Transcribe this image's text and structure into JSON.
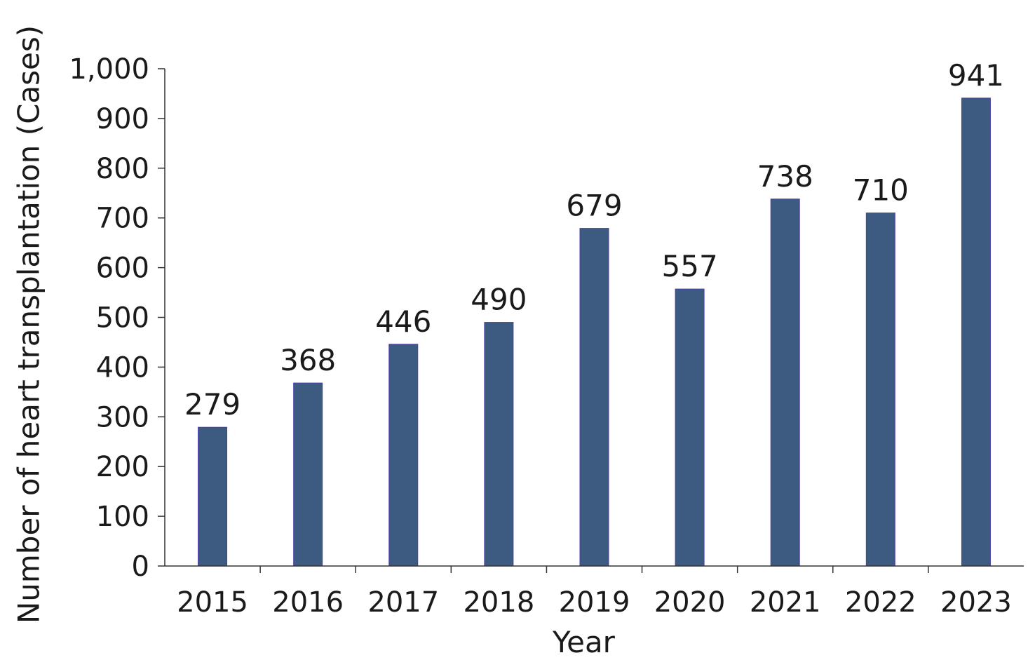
{
  "chart_data": {
    "type": "bar",
    "title": "",
    "xlabel": "Year",
    "ylabel": "Number of heart transplantation (Cases)",
    "categories": [
      "2015",
      "2016",
      "2017",
      "2018",
      "2019",
      "2020",
      "2021",
      "2022",
      "2023"
    ],
    "values": [
      279,
      368,
      446,
      490,
      679,
      557,
      738,
      710,
      941
    ],
    "data_labels": [
      "279",
      "368",
      "446",
      "490",
      "679",
      "557",
      "738",
      "710",
      "941"
    ],
    "y_ticks": [
      0,
      100,
      200,
      300,
      400,
      500,
      600,
      700,
      800,
      900,
      1000
    ],
    "y_tick_labels": [
      "0",
      "100",
      "200",
      "300",
      "400",
      "500",
      "600",
      "700",
      "800",
      "900",
      "1,000"
    ],
    "ylim": [
      0,
      1000
    ],
    "grid": false,
    "legend": "none",
    "colors": {
      "bar": "#3d5a80"
    }
  }
}
